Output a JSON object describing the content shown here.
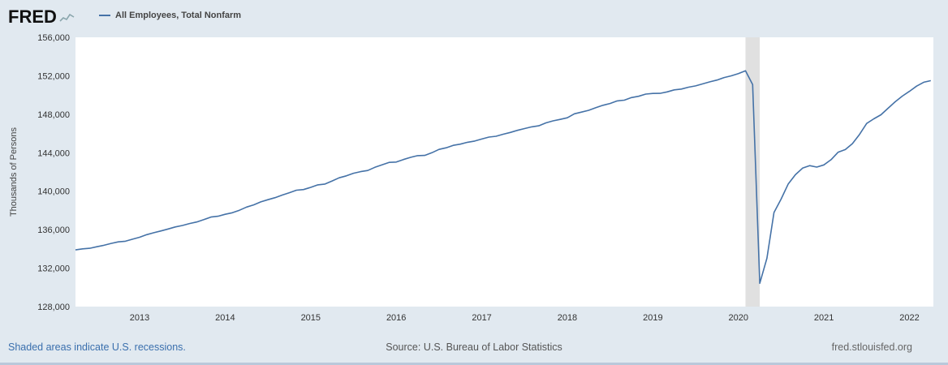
{
  "header": {
    "logo_text": "FRED",
    "legend": {
      "label": "All Employees, Total Nonfarm"
    }
  },
  "footer": {
    "recession_note": "Shaded areas indicate U.S. recessions.",
    "source": "Source: U.S. Bureau of Labor Statistics",
    "site": "fred.stlouisfed.org"
  },
  "colors": {
    "background": "#e1e9f0",
    "plot_background": "#ffffff",
    "line": "#4572a7",
    "recession_band": "#e0e0e0",
    "link": "#3a6fad",
    "text": "#333333",
    "muted_text": "#666666"
  },
  "chart_data": {
    "type": "line",
    "title": "All Employees, Total Nonfarm",
    "series_name": "All Employees, Total Nonfarm",
    "ylabel": "Thousands of Persons",
    "xlabel": "",
    "frequency": "Monthly",
    "grid": false,
    "legend_position": "top-left",
    "xlim": [
      2012.25,
      2022.28
    ],
    "ylim": [
      128000,
      156000
    ],
    "x_start": 2012.25,
    "x_step": 0.0833333,
    "y_ticks": [
      {
        "value": 128000,
        "label": "128,000"
      },
      {
        "value": 132000,
        "label": "132,000"
      },
      {
        "value": 136000,
        "label": "136,000"
      },
      {
        "value": 140000,
        "label": "140,000"
      },
      {
        "value": 144000,
        "label": "144,000"
      },
      {
        "value": 148000,
        "label": "148,000"
      },
      {
        "value": 152000,
        "label": "152,000"
      },
      {
        "value": 156000,
        "label": "156,000"
      }
    ],
    "x_ticks": [
      {
        "value": 2013,
        "label": "2013"
      },
      {
        "value": 2014,
        "label": "2014"
      },
      {
        "value": 2015,
        "label": "2015"
      },
      {
        "value": 2016,
        "label": "2016"
      },
      {
        "value": 2017,
        "label": "2017"
      },
      {
        "value": 2018,
        "label": "2018"
      },
      {
        "value": 2019,
        "label": "2019"
      },
      {
        "value": 2020,
        "label": "2020"
      },
      {
        "value": 2021,
        "label": "2021"
      },
      {
        "value": 2022,
        "label": "2022"
      }
    ],
    "recessions": [
      {
        "start": 2020.083,
        "end": 2020.25
      }
    ],
    "values": [
      133891,
      134001,
      134061,
      134222,
      134379,
      134566,
      134726,
      134794,
      135010,
      135208,
      135479,
      135686,
      135870,
      136075,
      136285,
      136434,
      136636,
      136800,
      137037,
      137312,
      137396,
      137594,
      137762,
      138018,
      138347,
      138576,
      138887,
      139119,
      139329,
      139595,
      139840,
      140103,
      140172,
      140394,
      140660,
      140744,
      141060,
      141389,
      141593,
      141869,
      142030,
      142152,
      142478,
      142745,
      142991,
      143025,
      143291,
      143516,
      143695,
      143719,
      143999,
      144341,
      144517,
      144764,
      144893,
      145084,
      145212,
      145423,
      145627,
      145710,
      145919,
      146108,
      146330,
      146513,
      146689,
      146800,
      147102,
      147317,
      147461,
      147636,
      148043,
      148225,
      148412,
      148683,
      148936,
      149114,
      149385,
      149467,
      149731,
      149868,
      150095,
      150167,
      150174,
      150321,
      150537,
      150622,
      150815,
      150949,
      151160,
      151368,
      151553,
      151814,
      151998,
      152234,
      152523,
      151090,
      130421,
      133028,
      137782,
      139181,
      140759,
      141715,
      142395,
      142660,
      142503,
      142736,
      143272,
      144057,
      144326,
      144940,
      145902,
      147040,
      147527,
      147944,
      148621,
      149293,
      149882,
      150386,
      150926,
      151327,
      151500
    ]
  }
}
